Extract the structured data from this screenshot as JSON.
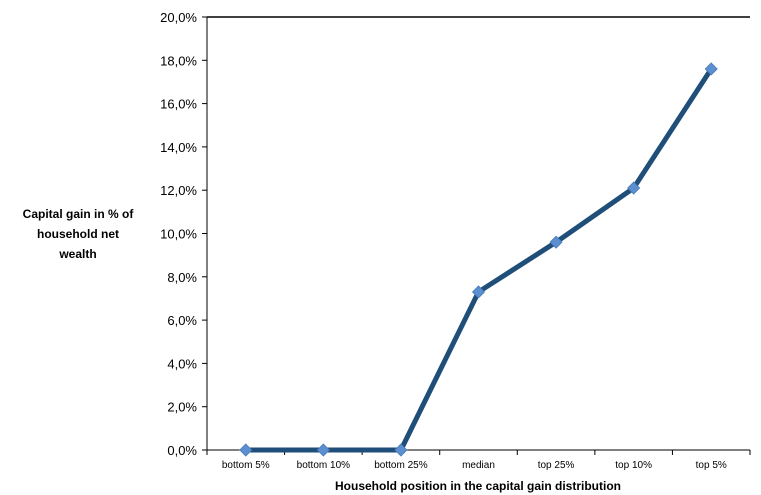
{
  "chart_data": {
    "type": "line",
    "categories": [
      "bottom 5%",
      "bottom 10%",
      "bottom 25%",
      "median",
      "top 25%",
      "top 10%",
      "top 5%"
    ],
    "series": [
      {
        "values": [
          0.0,
          0.0,
          0.0,
          7.3,
          9.6,
          12.1,
          17.6
        ]
      }
    ],
    "yticks": [
      "0,0%",
      "2,0%",
      "4,0%",
      "6,0%",
      "8,0%",
      "10,0%",
      "12,0%",
      "14,0%",
      "16,0%",
      "18,0%",
      "20,0%"
    ],
    "ylim": [
      0,
      20
    ],
    "ylabel": [
      "Capital gain in % of",
      "household net",
      "wealth"
    ],
    "xlabel": "Household position in the capital gain distribution",
    "grid": false,
    "legend": "none",
    "colors": {
      "line": "#1f4e79",
      "marker": "#5b8fd0",
      "axis": "#000000",
      "gridline_top": "#000000"
    },
    "marker_icon": "diamond"
  }
}
